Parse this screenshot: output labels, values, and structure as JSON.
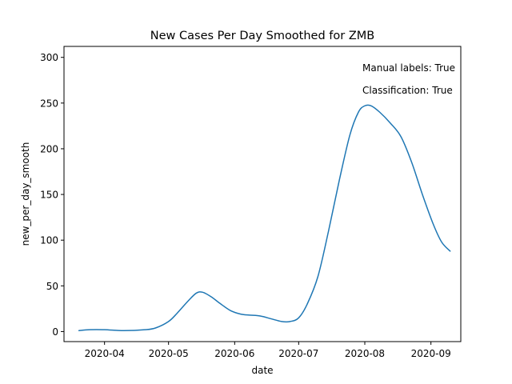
{
  "chart_data": {
    "type": "line",
    "title": "New Cases Per Day Smoothed for ZMB",
    "xlabel": "date",
    "ylabel": "new_per_day_smooth",
    "xlim": [
      "2020-03-13",
      "2020-09-15"
    ],
    "ylim": [
      -11,
      312
    ],
    "x_ticks": [
      "2020-04",
      "2020-05",
      "2020-06",
      "2020-07",
      "2020-08",
      "2020-09"
    ],
    "y_ticks": [
      0,
      50,
      100,
      150,
      200,
      250,
      300
    ],
    "grid": false,
    "annotations": [
      "Manual labels: True",
      "Classification: True"
    ],
    "series": [
      {
        "color": "#1f77b4",
        "points": [
          [
            "2020-03-20",
            1
          ],
          [
            "2020-03-25",
            2
          ],
          [
            "2020-04-01",
            2
          ],
          [
            "2020-04-10",
            1
          ],
          [
            "2020-04-20",
            2
          ],
          [
            "2020-04-25",
            4
          ],
          [
            "2020-05-01",
            11
          ],
          [
            "2020-05-05",
            20
          ],
          [
            "2020-05-10",
            33
          ],
          [
            "2020-05-14",
            42
          ],
          [
            "2020-05-17",
            43
          ],
          [
            "2020-05-21",
            38
          ],
          [
            "2020-05-25",
            31
          ],
          [
            "2020-05-30",
            23
          ],
          [
            "2020-06-04",
            19
          ],
          [
            "2020-06-08",
            18
          ],
          [
            "2020-06-13",
            17
          ],
          [
            "2020-06-18",
            14
          ],
          [
            "2020-06-23",
            11
          ],
          [
            "2020-06-27",
            11
          ],
          [
            "2020-07-01",
            15
          ],
          [
            "2020-07-05",
            30
          ],
          [
            "2020-07-10",
            60
          ],
          [
            "2020-07-15",
            110
          ],
          [
            "2020-07-20",
            165
          ],
          [
            "2020-07-25",
            215
          ],
          [
            "2020-07-29",
            240
          ],
          [
            "2020-08-01",
            247
          ],
          [
            "2020-08-04",
            247
          ],
          [
            "2020-08-08",
            240
          ],
          [
            "2020-08-13",
            228
          ],
          [
            "2020-08-18",
            213
          ],
          [
            "2020-08-23",
            185
          ],
          [
            "2020-08-28",
            150
          ],
          [
            "2020-09-02",
            118
          ],
          [
            "2020-09-06",
            98
          ],
          [
            "2020-09-10",
            88
          ]
        ]
      }
    ]
  }
}
